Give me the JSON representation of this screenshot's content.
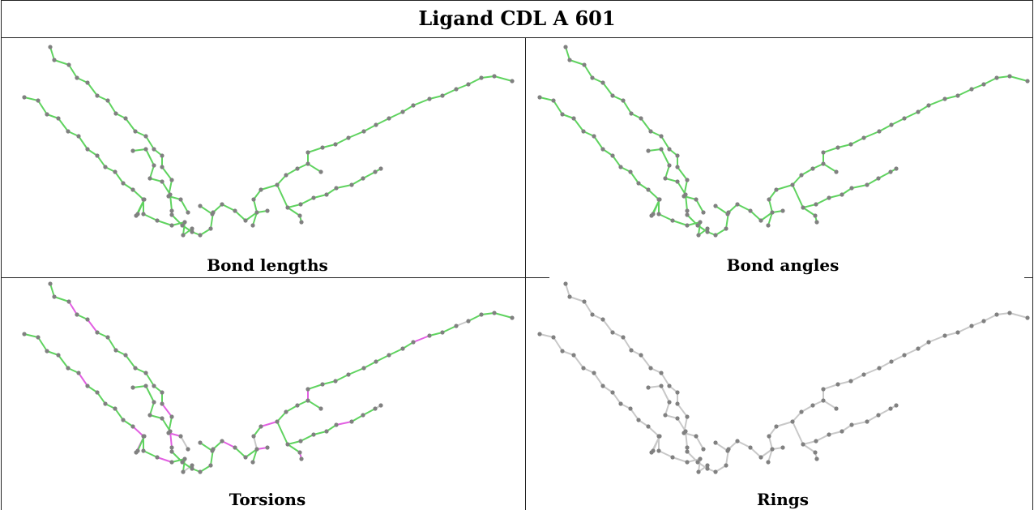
{
  "title": "Ligand CDL A 601",
  "colors": {
    "ok": "#5fd35f",
    "outlier": "#e25fe2",
    "plain": "#c8c8c8",
    "atom": "#808080"
  },
  "panels": [
    {
      "caption": "Bond lengths",
      "style": "all-green"
    },
    {
      "caption": "Bond angles",
      "style": "angles"
    },
    {
      "caption": "Torsions",
      "style": "torsions"
    },
    {
      "caption": "Rings",
      "style": "all-gray"
    }
  ]
}
